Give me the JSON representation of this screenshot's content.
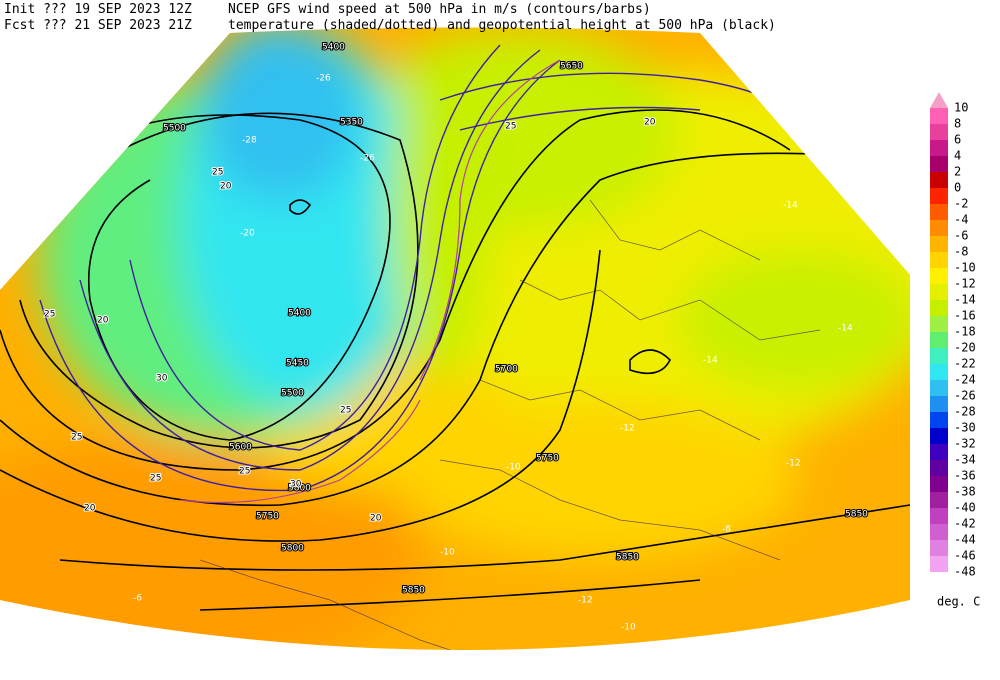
{
  "header": {
    "init": "Init  ??? 19 SEP 2023 12Z",
    "fcst": "Fcst ??? 21 SEP 2023 21Z",
    "line1": "NCEP GFS wind speed at 500 hPa in m/s (contours/barbs)",
    "line2": "temperature (shaded/dotted) and geopotential height at 500 hPa (black)"
  },
  "colorbar": {
    "labels": [
      10,
      8,
      6,
      4,
      2,
      0,
      -2,
      -4,
      -6,
      -8,
      -10,
      -12,
      -14,
      -16,
      -18,
      -20,
      -22,
      -24,
      -26,
      -28,
      -30,
      -32,
      -34,
      -36,
      -38,
      -40,
      -42,
      -44,
      -46,
      -48
    ],
    "colors": [
      "#f4a0c8",
      "#ff60b4",
      "#e8409c",
      "#c8188a",
      "#a8006a",
      "#c80000",
      "#ff2400",
      "#ff5c00",
      "#ff8c00",
      "#ffb400",
      "#ffd400",
      "#fff000",
      "#e4f000",
      "#c4f000",
      "#9ef044",
      "#60ee70",
      "#40eec0",
      "#30e6f0",
      "#30c0f0",
      "#2090f0",
      "#0044f0",
      "#0000cc",
      "#4000c0",
      "#6000a0",
      "#800090",
      "#a020a0",
      "#c040c0",
      "#d060d0",
      "#e080e0",
      "#f2a4f2"
    ],
    "unit": "deg. C"
  },
  "height_labels": [
    "5400",
    "5500",
    "5350",
    "5400",
    "5450",
    "5500",
    "5600",
    "5700",
    "5750",
    "5800",
    "5750",
    "5800",
    "5850",
    "5850",
    "5850",
    "5650"
  ],
  "temperature_labels": [
    "-26",
    "-28",
    "-26",
    "-20",
    "-14",
    "-14",
    "-14",
    "-12",
    "-12",
    "-10",
    "-10",
    "-8",
    "-6",
    "-10",
    "-12"
  ],
  "wind_labels": [
    "25",
    "20",
    "25",
    "20",
    "30",
    "25",
    "25",
    "20",
    "25",
    "25",
    "30",
    "20",
    "25",
    "20"
  ]
}
